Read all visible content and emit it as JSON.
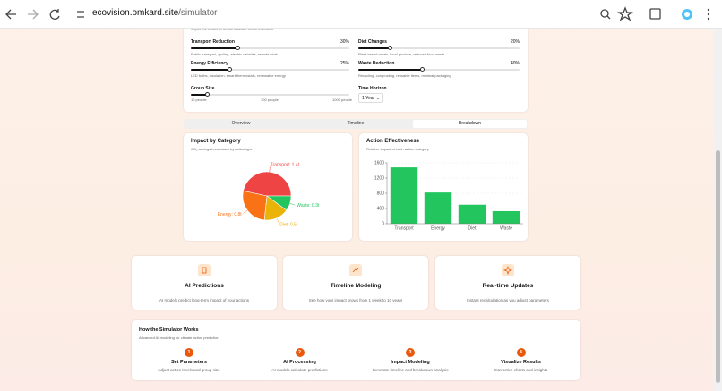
{
  "browser": {
    "url_host": "ecovision.omkard.site",
    "url_path": "/simulator"
  },
  "controls": {
    "subtitle": "Adjust the sliders to model different action scenarios",
    "sliders": [
      {
        "label": "Transport Reduction",
        "value": 30,
        "value_label": "30%",
        "description": "Public transport, cycling, electric vehicles, remote work"
      },
      {
        "label": "Diet Changes",
        "value": 20,
        "value_label": "20%",
        "description": "Plant-based meals, local produce, reduced food waste"
      },
      {
        "label": "Energy Efficiency",
        "value": 25,
        "value_label": "25%",
        "description": "LED bulbs, insulation, smart thermostats, renewable energy"
      },
      {
        "label": "Waste Reduction",
        "value": 40,
        "value_label": "40%",
        "description": "Recycling, composting, reusable items, minimal packaging"
      }
    ],
    "group_size": {
      "label": "Group Size",
      "min_label": "10 people",
      "mid_label": "100 people",
      "max_label": "1000 people"
    },
    "time_horizon": {
      "label": "Time Horizon",
      "selected": "1 Year"
    }
  },
  "tabs": {
    "items": [
      "Overview",
      "Timeline",
      "Breakdown"
    ],
    "active": "Breakdown"
  },
  "chart_data": [
    {
      "type": "pie",
      "title": "Impact by Category",
      "subtitle": "CO₂ savings breakdown by action type",
      "categories": [
        "Transport",
        "Energy",
        "Diet",
        "Waste"
      ],
      "values": [
        1.4,
        0.8,
        0.5,
        0.3
      ],
      "value_labels": [
        "Transport: 1.4t",
        "Energy: 0.8t",
        "Diet: 0.5t",
        "Waste: 0.3t"
      ],
      "colors": [
        "#ef4444",
        "#f97316",
        "#eab308",
        "#22c55e"
      ]
    },
    {
      "type": "bar",
      "title": "Action Effectiveness",
      "subtitle": "Relative impact of each action category",
      "categories": [
        "Transport",
        "Energy",
        "Diet",
        "Waste"
      ],
      "values": [
        1480,
        820,
        500,
        330
      ],
      "color": "#22c55e",
      "ylim": [
        0,
        1600
      ],
      "yticks": [
        0,
        400,
        800,
        1200,
        1600
      ],
      "grid": true
    }
  ],
  "features": [
    {
      "title": "AI Predictions",
      "description": "AI models predict long-term impact of your actions"
    },
    {
      "title": "Timeline Modeling",
      "description": "See how your impact grows from 1 week to 10 years"
    },
    {
      "title": "Real-time Updates",
      "description": "Instant recalculation as you adjust parameters"
    }
  ],
  "how_it_works": {
    "title": "How the Simulator Works",
    "subtitle": "Advanced AI modeling for climate action prediction",
    "steps": [
      {
        "number": "1",
        "title": "Set Parameters",
        "description": "Adjust action levels and group size"
      },
      {
        "number": "2",
        "title": "AI Processing",
        "description": "AI models calculate predictions"
      },
      {
        "number": "3",
        "title": "Impact Modeling",
        "description": "Generate timeline and breakdown analysis"
      },
      {
        "number": "4",
        "title": "Visualize Results",
        "description": "Interactive charts and insights"
      }
    ]
  }
}
